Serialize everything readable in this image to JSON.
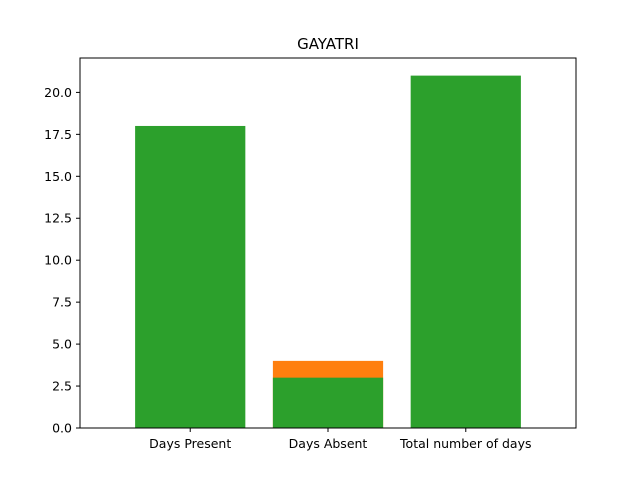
{
  "chart_data": {
    "type": "bar",
    "title": "GAYATRI",
    "xlabel": "",
    "ylabel": "",
    "categories": [
      "Days Present",
      "Days Absent",
      "Total number of days"
    ],
    "ylim": [
      0,
      22.05
    ],
    "yticks": [
      "0.0",
      "2.5",
      "5.0",
      "7.5",
      "10.0",
      "12.5",
      "15.0",
      "17.5",
      "20.0"
    ],
    "grid": false,
    "series": [
      {
        "color": "#ff7f0e",
        "values": [
          null,
          4,
          null
        ]
      },
      {
        "color": "#2ca02c",
        "values": [
          18,
          3,
          21
        ]
      }
    ]
  }
}
